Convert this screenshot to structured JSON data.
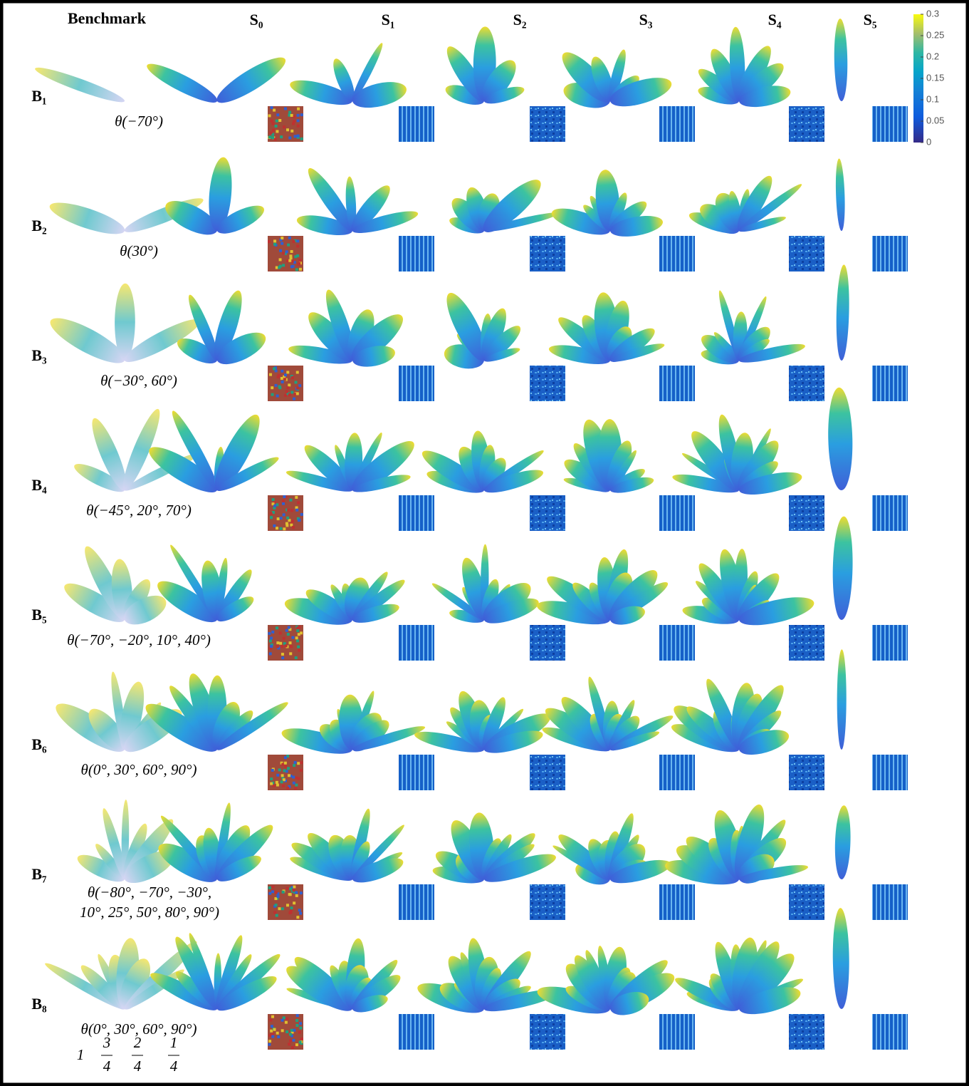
{
  "header": {
    "title": "Benchmark",
    "columns": [
      "S₀",
      "S₁",
      "S₂",
      "S₃",
      "S₄",
      "S₅"
    ]
  },
  "rows": [
    {
      "label": "B₁",
      "angles": [
        "θ(−70°)"
      ]
    },
    {
      "label": "B₂",
      "angles": [
        "θ(30°)"
      ]
    },
    {
      "label": "B₃",
      "angles": [
        "θ(−30°, 60°)"
      ]
    },
    {
      "label": "B₄",
      "angles": [
        "θ(−45°, 20°, 70°)"
      ]
    },
    {
      "label": "B₅",
      "angles": [
        "θ(−70°, −20°, 10°, 40°)"
      ]
    },
    {
      "label": "B₆",
      "angles": [
        "θ(0°, 30°, 60°, 90°)"
      ]
    },
    {
      "label": "B₇",
      "angles": [
        "θ(−80°, −70°, −30°,",
        "10°, 25°, 50°, 80°, 90°)"
      ]
    },
    {
      "label": "B₈",
      "angles": [
        "θ(0°, 30°, 60°, 90°)"
      ]
    }
  ],
  "weights": [
    {
      "num": "1"
    },
    {
      "num": "3",
      "den": "4"
    },
    {
      "num": "2",
      "den": "4"
    },
    {
      "num": "1",
      "den": "4"
    }
  ],
  "colorbar": {
    "lim": [
      0,
      0.3
    ],
    "ticks": [
      0.3,
      0.25,
      0.2,
      0.15,
      0.1,
      0.05,
      0
    ]
  }
}
